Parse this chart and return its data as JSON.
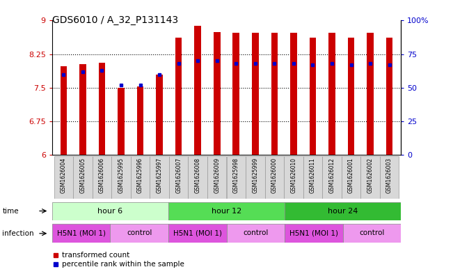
{
  "title": "GDS6010 / A_32_P131143",
  "samples": [
    "GSM1626004",
    "GSM1626005",
    "GSM1626006",
    "GSM1625995",
    "GSM1625996",
    "GSM1625997",
    "GSM1626007",
    "GSM1626008",
    "GSM1626009",
    "GSM1625998",
    "GSM1625999",
    "GSM1626000",
    "GSM1626010",
    "GSM1626011",
    "GSM1626012",
    "GSM1626001",
    "GSM1626002",
    "GSM1626003"
  ],
  "transformed_count": [
    7.98,
    8.02,
    8.05,
    7.5,
    7.52,
    7.8,
    8.62,
    8.88,
    8.75,
    8.72,
    8.72,
    8.72,
    8.72,
    8.62,
    8.72,
    8.62,
    8.72,
    8.62
  ],
  "percentile_rank": [
    60,
    62,
    63,
    52,
    52,
    60,
    68,
    70,
    70,
    68,
    68,
    68,
    68,
    67,
    68,
    67,
    68,
    67
  ],
  "ymin": 6,
  "ymax": 9,
  "yticks": [
    6,
    6.75,
    7.5,
    8.25,
    9
  ],
  "ytick_labels": [
    "6",
    "6.75",
    "7.5",
    "8.25",
    "9"
  ],
  "right_yticks_val": [
    0,
    25,
    50,
    75,
    100
  ],
  "right_ytick_labels": [
    "0",
    "25",
    "50",
    "75",
    "100%"
  ],
  "bar_color": "#cc0000",
  "dot_color": "#0000cc",
  "time_groups": [
    {
      "label": "hour 6",
      "start": 0,
      "end": 6,
      "color": "#ccffcc"
    },
    {
      "label": "hour 12",
      "start": 6,
      "end": 12,
      "color": "#55dd55"
    },
    {
      "label": "hour 24",
      "start": 12,
      "end": 18,
      "color": "#33bb33"
    }
  ],
  "infection_groups": [
    {
      "label": "H5N1 (MOI 1)",
      "start": 0,
      "end": 3,
      "color": "#dd55dd"
    },
    {
      "label": "control",
      "start": 3,
      "end": 6,
      "color": "#ee99ee"
    },
    {
      "label": "H5N1 (MOI 1)",
      "start": 6,
      "end": 9,
      "color": "#dd55dd"
    },
    {
      "label": "control",
      "start": 9,
      "end": 12,
      "color": "#ee99ee"
    },
    {
      "label": "H5N1 (MOI 1)",
      "start": 12,
      "end": 15,
      "color": "#dd55dd"
    },
    {
      "label": "control",
      "start": 15,
      "end": 18,
      "color": "#ee99ee"
    }
  ],
  "axis_color_left": "#cc0000",
  "axis_color_right": "#0000cc",
  "plot_bg": "#ffffff",
  "bar_width": 0.35
}
